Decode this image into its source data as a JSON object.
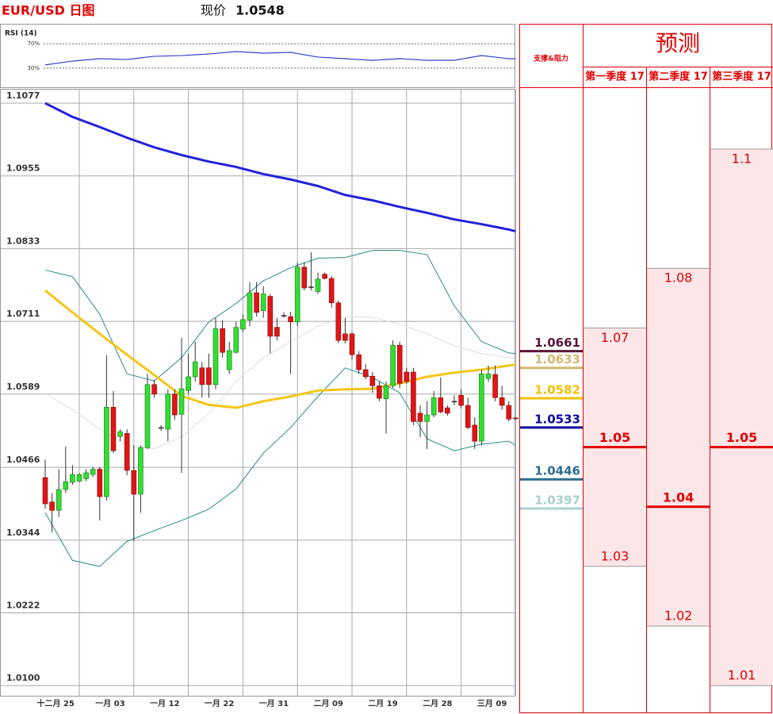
{
  "header": {
    "pair_title": "EUR/USD 日图",
    "price_label": "现价",
    "price": 1.0548
  },
  "chart_data": [
    {
      "type": "candlestick",
      "categories": [
        null,
        null,
        "十二月 25",
        null,
        null,
        null,
        null,
        null,
        null,
        null,
        "一月 03",
        null,
        null,
        null,
        null,
        null,
        null,
        null,
        "一月 12",
        null,
        null,
        null,
        null,
        null,
        null,
        null,
        "一月 22",
        null,
        null,
        null,
        null,
        null,
        null,
        null,
        "一月 31",
        null,
        null,
        null,
        null,
        null,
        null,
        null,
        "二月 09",
        null,
        null,
        null,
        null,
        null,
        null,
        null,
        "二月 19",
        null,
        null,
        null,
        null,
        null,
        null,
        null,
        "二月 28",
        null,
        null,
        null,
        null,
        null,
        null,
        null,
        "三月 09",
        null,
        null,
        null
      ],
      "open": [
        1.0449,
        1.0408,
        1.0394,
        1.0429,
        1.0441,
        1.0443,
        1.0447,
        1.0454,
        1.0463,
        1.0417,
        1.0567,
        1.0518,
        1.0523,
        1.0461,
        1.0421,
        1.0499,
        1.0605,
        1.0533,
        1.053,
        1.0589,
        1.0555,
        1.0595,
        1.0618,
        1.0633,
        1.0633,
        1.0605,
        1.0699,
        1.063,
        1.0659,
        1.0698,
        1.0713,
        1.0759,
        1.0729,
        1.0753,
        1.0701,
        1.0721,
        1.0719,
        1.071,
        1.0802,
        1.0769,
        1.0761,
        1.079,
        1.0783,
        1.0742,
        1.069,
        1.069,
        1.0655,
        1.063,
        1.0619,
        1.0603,
        1.0581,
        1.0603,
        1.0671,
        1.0626,
        1.0626,
        1.0557,
        1.0543,
        1.0554,
        1.0583,
        1.0566,
        1.0577,
        1.0587,
        1.057,
        1.0537,
        1.051,
        1.0615,
        1.0622,
        1.0583,
        1.057,
        1.0549
      ],
      "high": [
        1.0479,
        1.0423,
        1.0463,
        1.0501,
        1.047,
        1.0457,
        1.0463,
        1.0467,
        1.0467,
        1.0654,
        1.0594,
        1.053,
        1.053,
        1.0503,
        1.0503,
        1.0623,
        1.0613,
        1.0537,
        1.0597,
        1.0597,
        1.0683,
        1.0657,
        1.0677,
        1.0643,
        1.0657,
        1.0717,
        1.0713,
        1.0677,
        1.071,
        1.0723,
        1.0777,
        1.0777,
        1.077,
        1.0757,
        1.0717,
        1.0726,
        1.0727,
        1.081,
        1.081,
        1.0827,
        1.0793,
        1.0793,
        1.0787,
        1.0746,
        1.0717,
        1.0693,
        1.0661,
        1.0639,
        1.0626,
        1.061,
        1.061,
        1.0679,
        1.0677,
        1.0633,
        1.0633,
        1.057,
        1.0577,
        1.0594,
        1.0617,
        1.057,
        1.0587,
        1.0597,
        1.0583,
        1.055,
        1.063,
        1.0637,
        1.0637,
        1.0603,
        1.0577,
        1.055
      ],
      "low": [
        1.0397,
        1.0357,
        1.0383,
        1.0423,
        1.0437,
        1.0441,
        1.0443,
        1.045,
        1.0377,
        1.041,
        1.049,
        1.051,
        1.0453,
        1.0343,
        1.039,
        1.0497,
        1.0583,
        1.0527,
        1.051,
        1.0546,
        1.0457,
        1.059,
        1.061,
        1.0583,
        1.0583,
        1.0597,
        1.065,
        1.0623,
        1.0657,
        1.0693,
        1.0703,
        1.0719,
        1.0717,
        1.0657,
        1.0679,
        1.0717,
        1.0623,
        1.0703,
        1.0763,
        1.0763,
        1.0757,
        1.0781,
        1.0734,
        1.0674,
        1.0674,
        1.0646,
        1.0623,
        1.0614,
        1.0591,
        1.0577,
        1.0523,
        1.0599,
        1.0599,
        1.0606,
        1.0537,
        1.0517,
        1.0497,
        1.055,
        1.0557,
        1.0553,
        1.057,
        1.0565,
        1.053,
        1.0497,
        1.0503,
        1.061,
        1.0577,
        1.0563,
        1.0543,
        1.0546
      ],
      "close": [
        1.0405,
        1.0394,
        1.0429,
        1.0442,
        1.0454,
        1.0454,
        1.0457,
        1.0463,
        1.0417,
        1.0567,
        1.0494,
        1.0526,
        1.0461,
        1.0421,
        1.0499,
        1.0605,
        1.0589,
        1.0533,
        1.0589,
        1.0554,
        1.0598,
        1.0618,
        1.0643,
        1.0605,
        1.0605,
        1.0699,
        1.0659,
        1.0662,
        1.0701,
        1.0714,
        1.0759,
        1.0726,
        1.0757,
        1.0686,
        1.0686,
        1.0721,
        1.071,
        1.0802,
        1.0767,
        1.0769,
        1.0782,
        1.0783,
        1.0742,
        1.0679,
        1.0679,
        1.0655,
        1.063,
        1.0618,
        1.0603,
        1.0582,
        1.0603,
        1.0671,
        1.0607,
        1.061,
        1.0543,
        1.0543,
        1.0554,
        1.0583,
        1.0559,
        1.0557,
        1.0577,
        1.057,
        1.0533,
        1.051,
        1.0623,
        1.0623,
        1.0583,
        1.057,
        1.0547,
        1.0548
      ],
      "up_color": "#33dd33",
      "down_color": "#e01515",
      "overlays": [
        {
          "color": "#dddddd",
          "width": 1,
          "x": [
            0,
            4,
            8,
            12,
            16,
            20,
            24,
            28,
            32,
            36,
            40,
            44,
            48,
            52,
            56,
            60,
            64,
            68,
            69
          ],
          "values": [
            1.059,
            1.0563,
            1.053,
            1.0503,
            1.0497,
            1.0517,
            1.0557,
            1.061,
            1.065,
            1.0677,
            1.0703,
            1.0719,
            1.0718,
            1.0706,
            1.069,
            1.067,
            1.0657,
            1.065,
            1.0649
          ]
        },
        {
          "color": "#2a8a8a",
          "width": 1,
          "x": [
            0,
            4,
            8,
            12,
            16,
            20,
            24,
            28,
            32,
            36,
            40,
            44,
            48,
            52,
            56,
            60,
            64,
            68,
            69
          ],
          "values": [
            1.0797,
            1.0786,
            1.0723,
            1.0623,
            1.0611,
            1.065,
            1.071,
            1.0741,
            1.0779,
            1.0801,
            1.0817,
            1.0818,
            1.083,
            1.083,
            1.0823,
            1.0737,
            1.0677,
            1.0658,
            1.0657
          ]
        },
        {
          "color": "#2a8a8a",
          "width": 1,
          "x": [
            0,
            4,
            8,
            12,
            16,
            20,
            24,
            28,
            32,
            36,
            40,
            44,
            48,
            52,
            56,
            60,
            64,
            68,
            69
          ],
          "values": [
            1.039,
            1.031,
            1.03,
            1.0342,
            1.036,
            1.0377,
            1.0396,
            1.043,
            1.049,
            1.0533,
            1.0585,
            1.0633,
            1.0617,
            1.0591,
            1.0514,
            1.0494,
            1.0505,
            1.051,
            1.0503
          ]
        },
        {
          "color": "#f5c518",
          "width": 3,
          "x": [
            0,
            4,
            8,
            12,
            16,
            20,
            24,
            28,
            32,
            36,
            40,
            44,
            48,
            52,
            56,
            60,
            64,
            68,
            69
          ],
          "values": [
            1.0763,
            1.0726,
            1.069,
            1.0655,
            1.0621,
            1.0586,
            1.0571,
            1.0566,
            1.0577,
            1.0585,
            1.0595,
            1.0597,
            1.0598,
            1.0607,
            1.0618,
            1.0625,
            1.063,
            1.0637,
            1.0638
          ]
        },
        {
          "color": "#2222dd",
          "width": 3,
          "x": [
            0,
            4,
            8,
            12,
            16,
            20,
            24,
            28,
            32,
            36,
            40,
            44,
            48,
            52,
            56,
            60,
            64,
            68,
            69
          ],
          "values": [
            1.1077,
            1.1054,
            1.1037,
            1.1019,
            1.1003,
            1.099,
            1.0979,
            1.097,
            1.0958,
            1.0949,
            1.0938,
            1.0923,
            1.0914,
            1.0903,
            1.0893,
            1.0882,
            1.0874,
            1.0865,
            1.0862
          ]
        }
      ],
      "ylim": [
        1.0083,
        1.1101
      ],
      "yticks": [
        1.1077,
        1.0955,
        1.0833,
        1.0711,
        1.0589,
        1.0466,
        1.0344,
        1.0222,
        {
          "value": 1.01,
          "label": "1.0100"
        }
      ],
      "grid": true
    },
    {
      "type": "line",
      "title": "RSI (14)",
      "x": [
        0,
        4,
        8,
        12,
        16,
        20,
        24,
        28,
        32,
        36,
        40,
        44,
        48,
        52,
        56,
        60,
        64,
        68,
        69
      ],
      "series": [
        {
          "color": "#3344cc",
          "values": [
            35.2,
            41.6,
            45.5,
            44.2,
            49.4,
            50.6,
            53.2,
            57.1,
            54.5,
            55.8,
            48.1,
            45.5,
            42.9,
            45.5,
            42.9,
            42.9,
            50.6,
            45.5,
            45.5
          ]
        }
      ],
      "ylim": [
        0,
        100
      ],
      "yticks": [
        {
          "value": 30,
          "label": "30%"
        },
        {
          "value": 70,
          "label": "70%"
        }
      ]
    }
  ],
  "levels": {
    "title": "支撑&阻力",
    "items": [
      {
        "value": 1.0661,
        "color": "#5c1438"
      },
      {
        "value": 1.0633,
        "color": "#d4b870"
      },
      {
        "value": 1.0582,
        "color": "#f5c000"
      },
      {
        "value": 1.0533,
        "color": "#0a0aa0"
      },
      {
        "value": 1.0446,
        "color": "#2a6e8e"
      },
      {
        "value": 1.0397,
        "color": "#a9d0d0"
      }
    ]
  },
  "forecast": {
    "title": "预测",
    "columns": [
      {
        "name": "第一季度 17",
        "high": 1.07,
        "mid": 1.05,
        "low": 1.03
      },
      {
        "name": "第二季度 17",
        "high": 1.08,
        "mid": 1.04,
        "low": 1.02
      },
      {
        "name": "第三季度 17",
        "high": 1.1,
        "mid": 1.05,
        "low": 1.01
      }
    ]
  }
}
